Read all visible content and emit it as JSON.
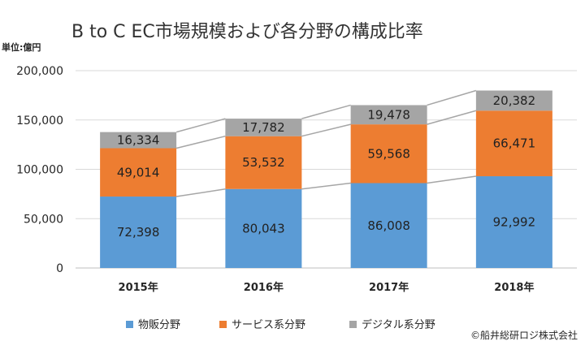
{
  "chart_data": {
    "type": "bar",
    "stacked": true,
    "title": "B to C EC市場規模および各分野の構成比率",
    "unit_label": "単位:億円",
    "categories": [
      "2015年",
      "2016年",
      "2017年",
      "2018年"
    ],
    "series": [
      {
        "name": "物販分野",
        "color": "#5b9bd5",
        "values": [
          72398,
          80043,
          86008,
          92992
        ],
        "value_labels": [
          "72,398",
          "80,043",
          "86,008",
          "92,992"
        ]
      },
      {
        "name": "サービス系分野",
        "color": "#ed7d31",
        "values": [
          49014,
          53532,
          59568,
          66471
        ],
        "value_labels": [
          "49,014",
          "53,532",
          "59,568",
          "66,471"
        ]
      },
      {
        "name": "デジタル系分野",
        "color": "#a5a5a5",
        "values": [
          16334,
          17782,
          19478,
          20382
        ],
        "value_labels": [
          "16,334",
          "17,782",
          "19,478",
          "20,382"
        ]
      }
    ],
    "ylim": [
      0,
      200000
    ],
    "yticks": [
      0,
      50000,
      100000,
      150000,
      200000
    ],
    "ytick_labels": [
      "0",
      "50,000",
      "100,000",
      "150,000",
      "200,000"
    ],
    "grid": true,
    "series_lines": true,
    "legend_position": "bottom"
  },
  "copyright": "©船井総研ロジ株式会社"
}
